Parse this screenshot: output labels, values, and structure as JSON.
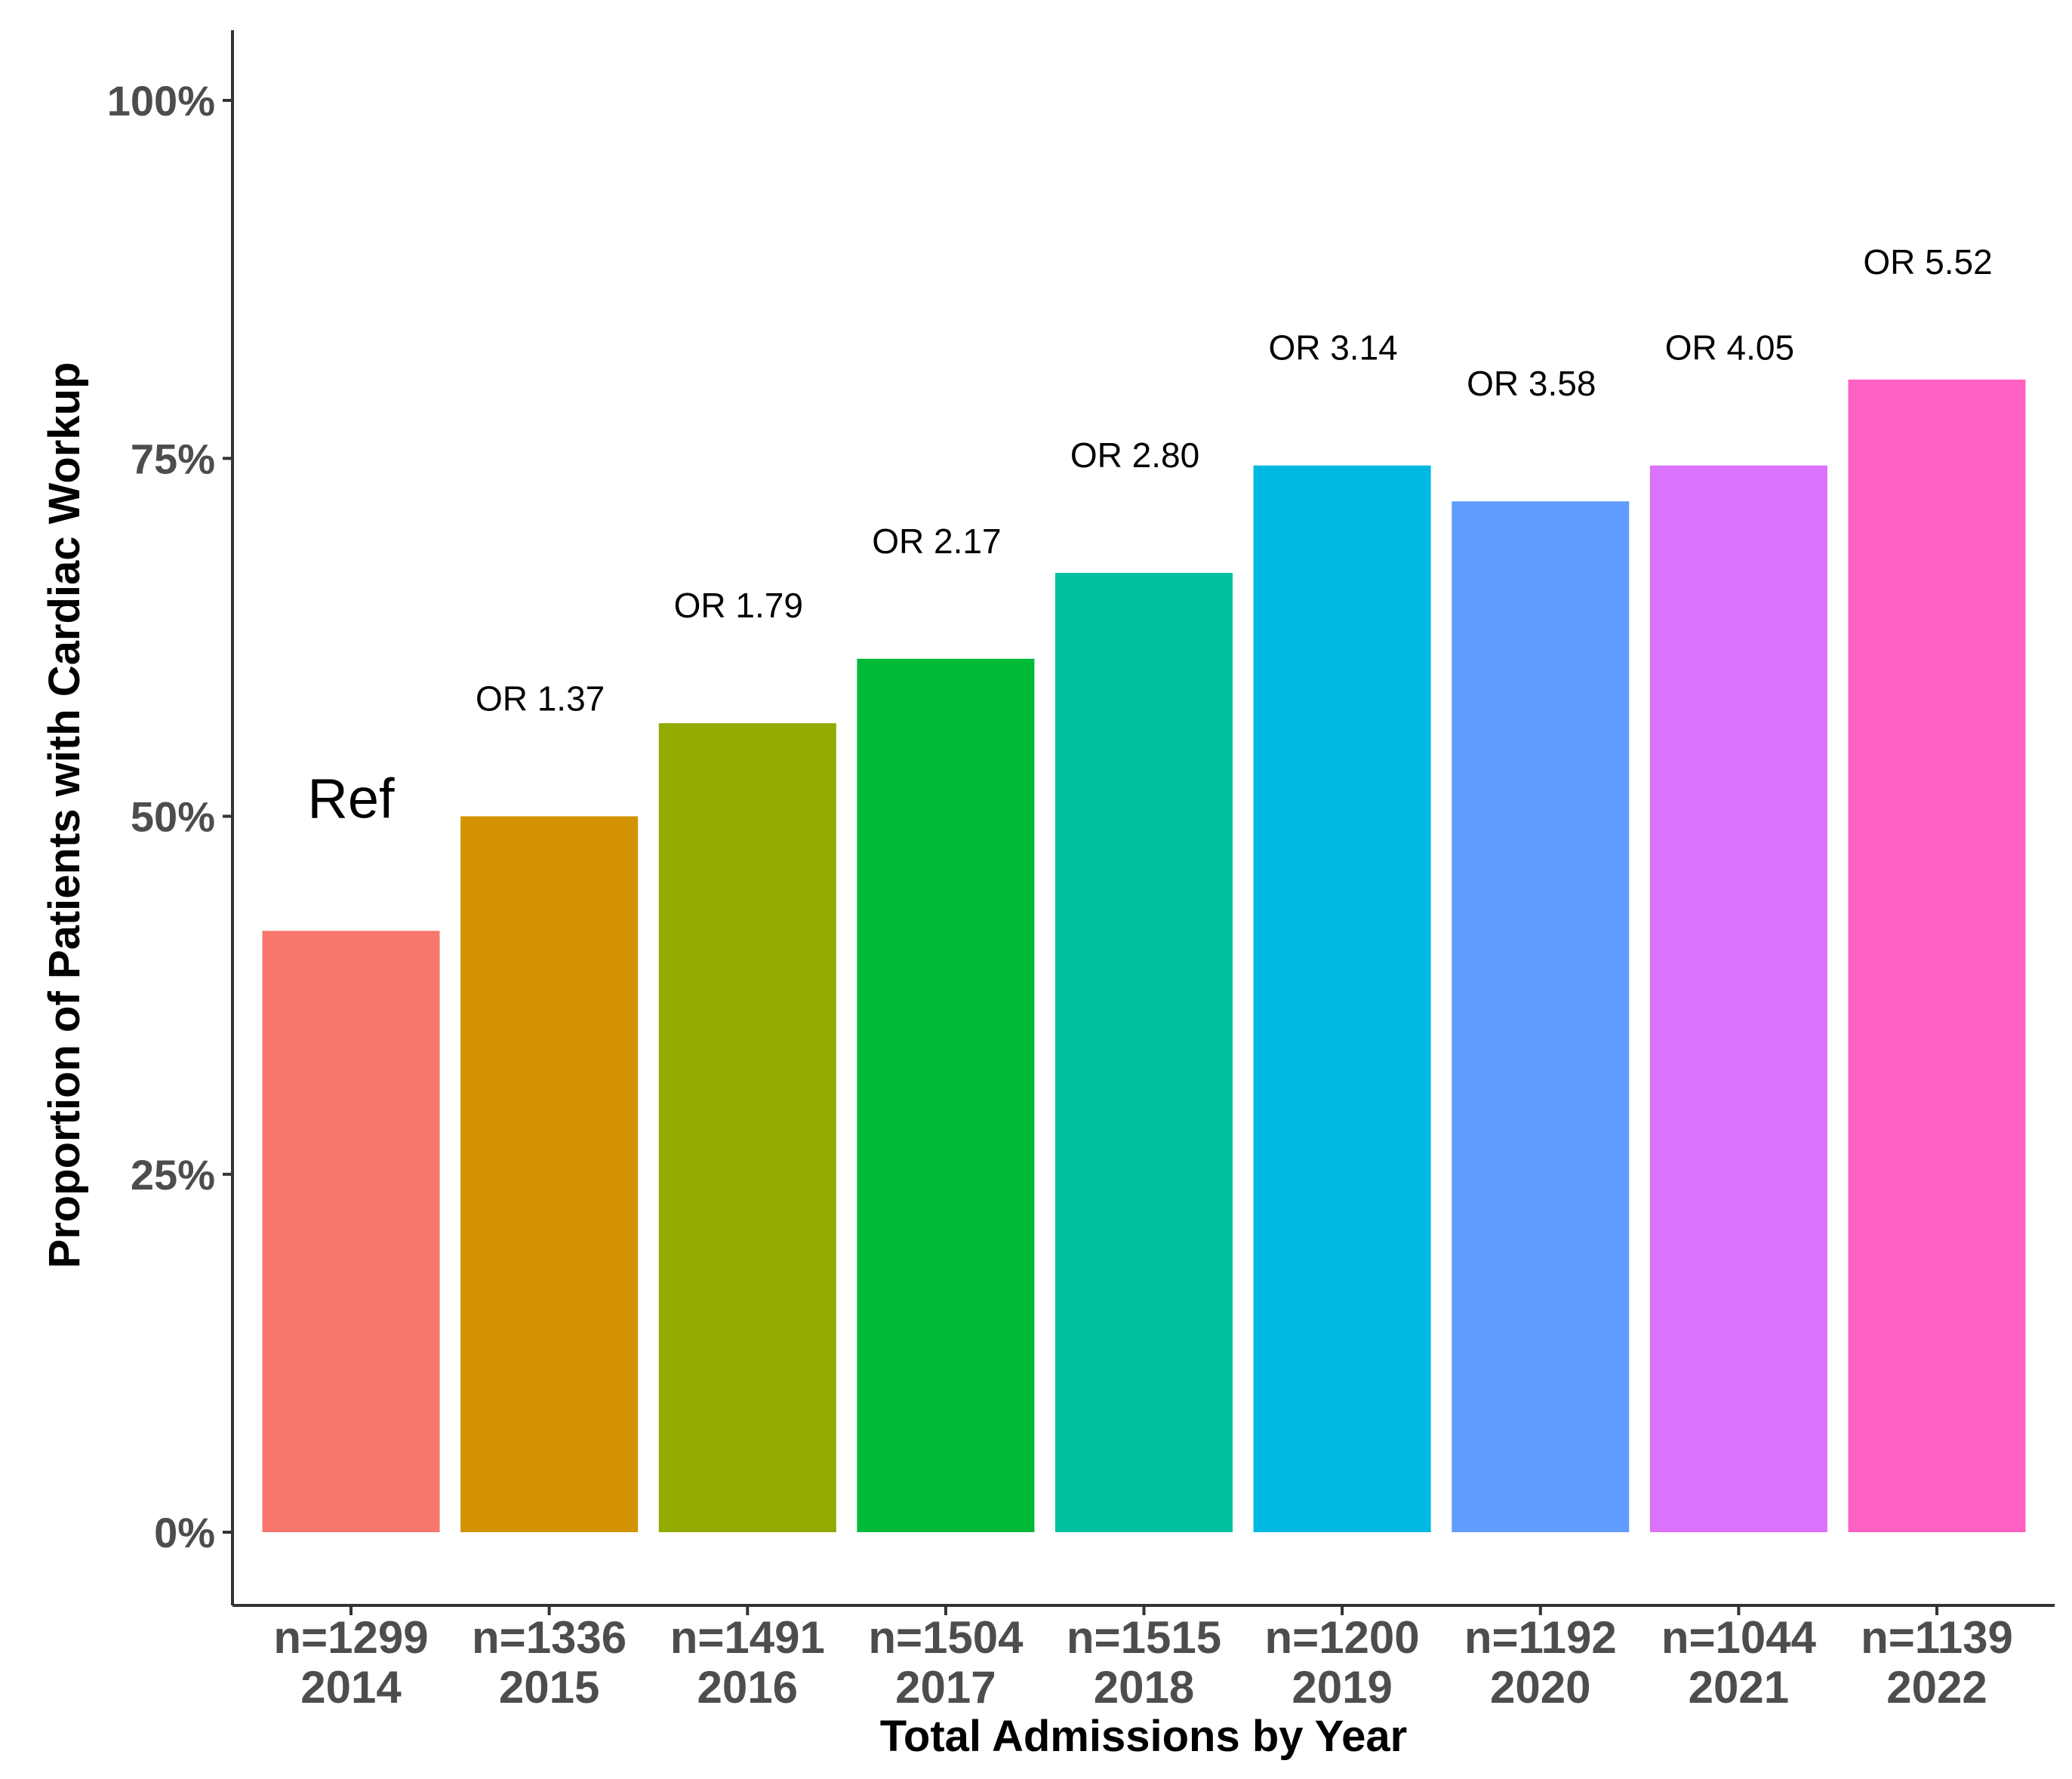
{
  "chart_data": {
    "type": "bar",
    "title": "",
    "xlabel": "Total Admissions by Year",
    "ylabel": "Proportion of Patients with Cardiac Workup",
    "ylim": [
      0,
      1
    ],
    "yticks": [
      0,
      0.25,
      0.5,
      0.75,
      1.0
    ],
    "ytick_labels": [
      "0%",
      "25%",
      "50%",
      "75%",
      "100%"
    ],
    "grid": false,
    "legend": "none",
    "categories": [
      "2014",
      "2015",
      "2016",
      "2017",
      "2018",
      "2019",
      "2020",
      "2021",
      "2022"
    ],
    "n_labels": [
      "n=1299",
      "n=1336",
      "n=1491",
      "n=1504",
      "n=1515",
      "n=1200",
      "n=1192",
      "n=1044",
      "n=1139"
    ],
    "values": [
      0.42,
      0.5,
      0.565,
      0.61,
      0.67,
      0.745,
      0.72,
      0.745,
      0.805
    ],
    "annotations": [
      "Ref",
      "OR 1.37",
      "OR 1.79",
      "OR 2.17",
      "OR 2.80",
      "OR 3.14",
      "OR 3.58",
      "OR 4.05",
      "OR 5.52"
    ],
    "colors": [
      "#F8766D",
      "#D39200",
      "#93AA00",
      "#00BA38",
      "#00C19F",
      "#00B9E3",
      "#619CFF",
      "#DB72FB",
      "#FF61C3"
    ]
  }
}
